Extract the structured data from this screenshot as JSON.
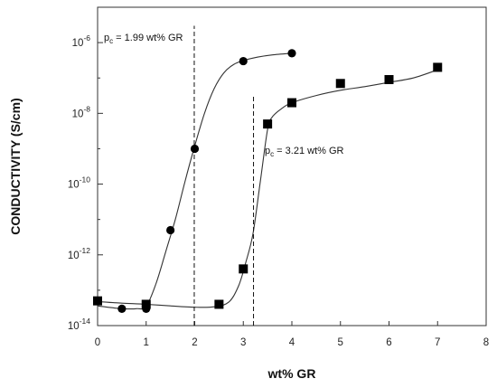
{
  "chart_data": {
    "type": "scatter",
    "title": "",
    "xlabel": "wt% GR",
    "ylabel": "CONDUCTIVITY (S/cm)",
    "xlim": [
      0,
      8
    ],
    "x_ticks": [
      "0",
      "1",
      "2",
      "3",
      "4",
      "5",
      "6",
      "7",
      "8"
    ],
    "ylim": [
      1e-14,
      1e-05
    ],
    "y_scale": "log",
    "y_ticks": [
      {
        "value": 1e-14,
        "base": "10",
        "exp": "-14"
      },
      {
        "value": 1e-12,
        "base": "10",
        "exp": "-12"
      },
      {
        "value": 1e-10,
        "base": "10",
        "exp": "-10"
      },
      {
        "value": 1e-08,
        "base": "10",
        "exp": "-8"
      },
      {
        "value": 1e-06,
        "base": "10",
        "exp": "-6"
      }
    ],
    "grid": false,
    "series": [
      {
        "marker": "circle",
        "x": [
          0.5,
          1,
          1.5,
          2,
          3,
          4
        ],
        "y": [
          3e-14,
          3e-14,
          5e-12,
          1e-09,
          3e-07,
          5e-07
        ],
        "fit_curve": [
          [
            0,
            3.6e-14
          ],
          [
            0.3,
            3.2e-14
          ],
          [
            0.5,
            3e-14
          ],
          [
            0.8,
            3e-14
          ],
          [
            1.0,
            3.5e-14
          ],
          [
            1.2,
            1.5e-13
          ],
          [
            1.4,
            1.2e-12
          ],
          [
            1.6,
            1e-11
          ],
          [
            1.8,
            1.2e-10
          ],
          [
            2.0,
            1.2e-09
          ],
          [
            2.2,
            1e-08
          ],
          [
            2.4,
            5e-08
          ],
          [
            2.6,
            1.4e-07
          ],
          [
            2.8,
            2.4e-07
          ],
          [
            3.0,
            3.1e-07
          ],
          [
            3.3,
            3.9e-07
          ],
          [
            3.6,
            4.5e-07
          ],
          [
            4.0,
            5e-07
          ]
        ]
      },
      {
        "marker": "square",
        "x": [
          0,
          1,
          2.5,
          3,
          3.5,
          4,
          5,
          6,
          7
        ],
        "y": [
          5e-14,
          4e-14,
          4e-14,
          4e-13,
          5e-09,
          2e-08,
          7e-08,
          9e-08,
          2e-07
        ],
        "fit_curve": [
          [
            0,
            4.8e-14
          ],
          [
            0.5,
            4.3e-14
          ],
          [
            1.0,
            4e-14
          ],
          [
            1.5,
            3.6e-14
          ],
          [
            2.0,
            3.3e-14
          ],
          [
            2.4,
            3.4e-14
          ],
          [
            2.7,
            4.6e-14
          ],
          [
            2.9,
            1.3e-13
          ],
          [
            3.05,
            6e-13
          ],
          [
            3.2,
            4e-12
          ],
          [
            3.35,
            1.2e-10
          ],
          [
            3.5,
            3.5e-09
          ],
          [
            3.6,
            8e-09
          ],
          [
            3.8,
            1.4e-08
          ],
          [
            4.0,
            2e-08
          ],
          [
            4.5,
            3.2e-08
          ],
          [
            5.0,
            4.5e-08
          ],
          [
            5.5,
            5.7e-08
          ],
          [
            6.0,
            7.5e-08
          ],
          [
            6.5,
            1e-07
          ],
          [
            7.0,
            1.7e-07
          ]
        ]
      }
    ],
    "percolation_lines": [
      {
        "x": 1.99,
        "y_from": 1e-14,
        "y_to": 3e-06,
        "label_p": "p",
        "label_sub": "c",
        "label_text": " = 1.99 wt% GR"
      },
      {
        "x": 3.21,
        "y_from": 1e-14,
        "y_to": 3e-08,
        "label_p": "p",
        "label_sub": "c",
        "label_text": " = 3.21 wt% GR"
      }
    ]
  }
}
